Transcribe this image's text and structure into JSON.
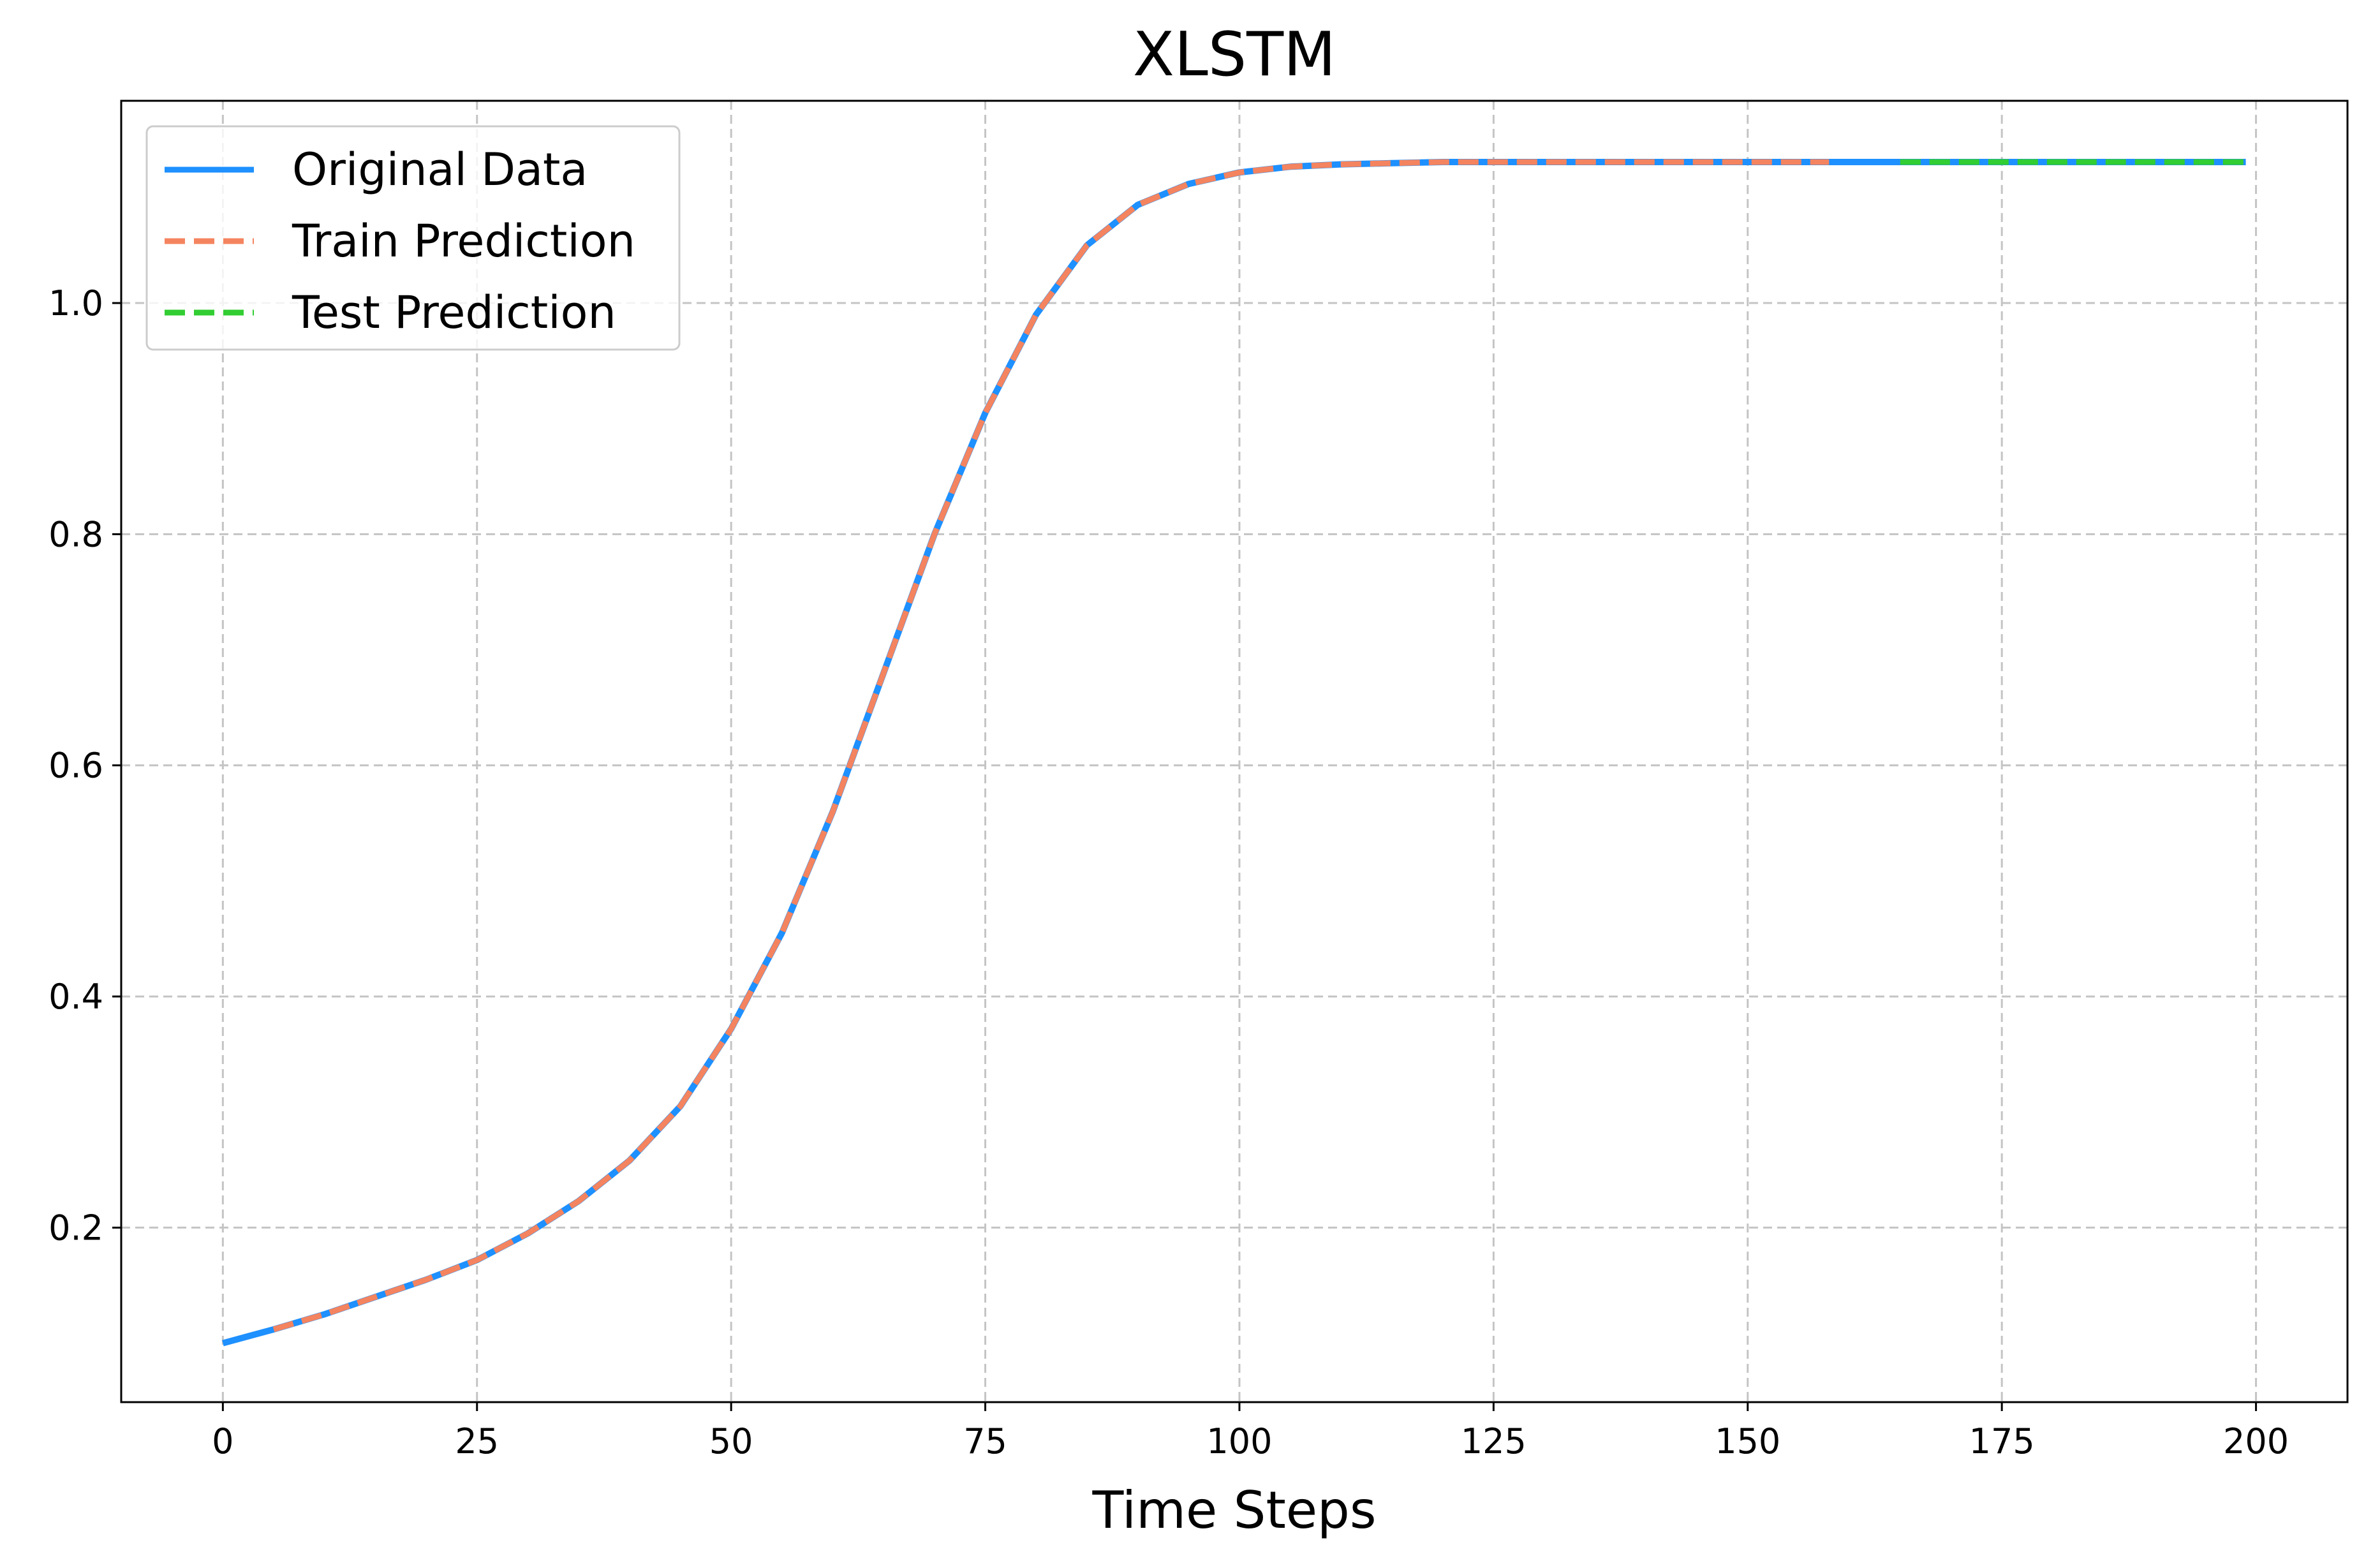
{
  "chart_data": {
    "type": "line",
    "title": "XLSTM",
    "xlabel": "Time Steps",
    "ylabel": "",
    "xlim": [
      -10,
      209
    ],
    "ylim": [
      0.049,
      1.175
    ],
    "x_ticks": [
      0,
      25,
      50,
      75,
      100,
      125,
      150,
      175,
      200
    ],
    "x_tick_labels": [
      "0",
      "25",
      "50",
      "75",
      "100",
      "125",
      "150",
      "175",
      "200"
    ],
    "y_ticks": [
      0.2,
      0.4,
      0.6,
      0.8,
      1.0
    ],
    "y_tick_labels": [
      "0.2",
      "0.4",
      "0.6",
      "0.8",
      "1.0"
    ],
    "grid": true,
    "legend_position": "upper-left",
    "series": [
      {
        "name": "Original Data",
        "color": "#1e90ff",
        "style": "solid",
        "x": [
          0,
          5,
          10,
          15,
          20,
          25,
          30,
          35,
          40,
          45,
          50,
          55,
          60,
          65,
          70,
          75,
          80,
          85,
          90,
          95,
          100,
          105,
          110,
          115,
          120,
          125,
          130,
          140,
          150,
          160,
          170,
          180,
          190,
          199
        ],
        "y": [
          0.1,
          0.112,
          0.125,
          0.14,
          0.155,
          0.172,
          0.195,
          0.223,
          0.258,
          0.305,
          0.372,
          0.455,
          0.56,
          0.68,
          0.8,
          0.905,
          0.99,
          1.05,
          1.085,
          1.103,
          1.113,
          1.118,
          1.12,
          1.121,
          1.122,
          1.122,
          1.122,
          1.122,
          1.122,
          1.122,
          1.122,
          1.122,
          1.122,
          1.122
        ]
      },
      {
        "name": "Train Prediction",
        "color": "#f4845f",
        "style": "dashed",
        "x": [
          5,
          10,
          15,
          20,
          25,
          30,
          35,
          40,
          45,
          50,
          55,
          60,
          65,
          70,
          75,
          80,
          85,
          90,
          95,
          100,
          105,
          110,
          115,
          120,
          125,
          130,
          140,
          150,
          158
        ],
        "y": [
          0.112,
          0.125,
          0.14,
          0.155,
          0.172,
          0.195,
          0.223,
          0.258,
          0.305,
          0.372,
          0.455,
          0.56,
          0.68,
          0.8,
          0.905,
          0.99,
          1.05,
          1.085,
          1.103,
          1.113,
          1.118,
          1.12,
          1.121,
          1.122,
          1.122,
          1.122,
          1.122,
          1.122,
          1.122
        ]
      },
      {
        "name": "Test Prediction",
        "color": "#32cd32",
        "style": "dashed",
        "x": [
          165,
          170,
          175,
          180,
          185,
          190,
          195,
          199
        ],
        "y": [
          1.122,
          1.122,
          1.122,
          1.122,
          1.122,
          1.122,
          1.122,
          1.122
        ]
      }
    ]
  }
}
